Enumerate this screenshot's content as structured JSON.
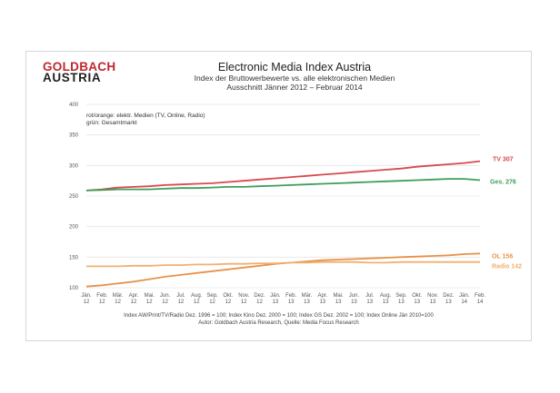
{
  "logo": {
    "line1": "GOLDBACH",
    "line2": "AUSTRIA"
  },
  "header": {
    "title": "Electronic Media Index Austria",
    "subtitle1": "Index der Bruttowerbewerte vs. alle elektronischen Medien",
    "subtitle2": "Ausschnitt Jänner 2012 –  Februar 2014"
  },
  "note": {
    "line1": "rot/orange: elektr. Medien (TV, Online, Radio)",
    "line2": "grün: Gesamtmarkt"
  },
  "footnote": {
    "line1": "Index AW/Print/TV/Radio Dez. 1996 = 100; Index Kino Dez. 2000 = 100; Index GS Dez. 2002 = 100; Index Online Jän 2010=100",
    "line2": "Autor: Goldbach Austria Research, Quelle: Media Focus Research"
  },
  "chart_data": {
    "type": "line",
    "title": "Electronic Media Index Austria",
    "xlabel": "",
    "ylabel": "",
    "ylim": [
      100,
      400
    ],
    "yticks": [
      100,
      150,
      200,
      250,
      300,
      350,
      400
    ],
    "grid": true,
    "categories_top": [
      "Jän.",
      "Feb.",
      "Mär.",
      "Apr.",
      "Mai.",
      "Jun.",
      "Jul.",
      "Aug.",
      "Sep.",
      "Okt.",
      "Nov.",
      "Dez.",
      "Jän.",
      "Feb.",
      "Mär.",
      "Apr.",
      "Mai.",
      "Jun.",
      "Jul.",
      "Aug.",
      "Sep.",
      "Okt.",
      "Nov.",
      "Dez.",
      "Jän.",
      "Feb."
    ],
    "categories_bottom": [
      "12",
      "12",
      "12",
      "12",
      "12",
      "12",
      "12",
      "12",
      "12",
      "12",
      "12",
      "12",
      "13",
      "13",
      "13",
      "13",
      "13",
      "13",
      "13",
      "13",
      "13",
      "13",
      "13",
      "13",
      "14",
      "14"
    ],
    "series": [
      {
        "name": "TV",
        "end_label": "TV  307",
        "color": "#d8494f",
        "values": [
          259,
          261,
          264,
          265,
          266,
          268,
          269,
          270,
          271,
          273,
          275,
          277,
          279,
          281,
          283,
          285,
          287,
          289,
          291,
          293,
          295,
          298,
          300,
          302,
          304,
          307
        ]
      },
      {
        "name": "Ges.",
        "end_label": "Ges. 276",
        "color": "#3f9e5a",
        "values": [
          259,
          260,
          261,
          261,
          261,
          262,
          263,
          263,
          264,
          265,
          265,
          266,
          267,
          268,
          269,
          270,
          271,
          272,
          273,
          274,
          275,
          276,
          277,
          278,
          278,
          276
        ]
      },
      {
        "name": "OL",
        "end_label": "OL 156",
        "color": "#e8924a",
        "values": [
          102,
          104,
          107,
          110,
          114,
          118,
          121,
          124,
          127,
          130,
          133,
          136,
          139,
          141,
          143,
          145,
          146,
          147,
          148,
          149,
          150,
          151,
          152,
          153,
          155,
          156
        ]
      },
      {
        "name": "Radio",
        "end_label": "Radio 142",
        "color": "#f0b070",
        "values": [
          135,
          135,
          135,
          136,
          136,
          137,
          137,
          138,
          138,
          139,
          139,
          140,
          140,
          141,
          141,
          142,
          142,
          142,
          141,
          141,
          142,
          142,
          142,
          142,
          142,
          142
        ]
      }
    ]
  }
}
